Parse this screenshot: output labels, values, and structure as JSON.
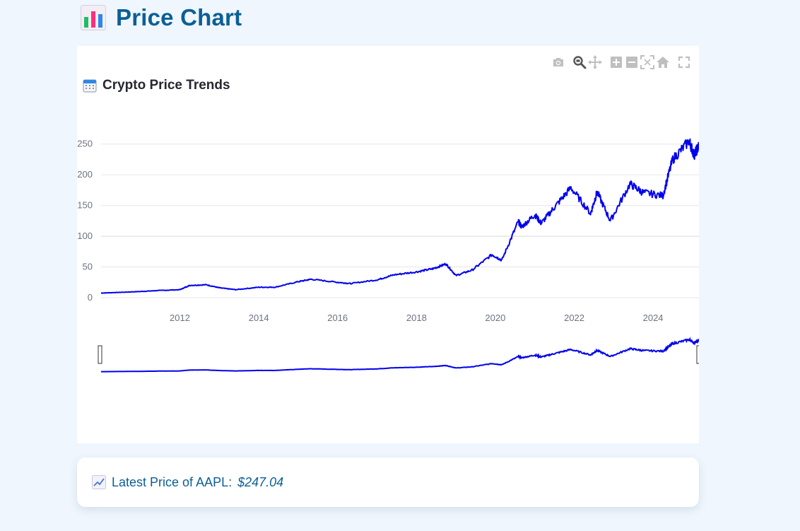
{
  "page": {
    "title": "Price Chart",
    "title_icon": "bar-chart-icon"
  },
  "chart_title": {
    "text": "Crypto Price Trends",
    "icon": "calendar-icon"
  },
  "modebar": [
    {
      "name": "camera-icon",
      "label": "Download plot as a png"
    },
    {
      "name": "zoom-icon",
      "label": "Zoom"
    },
    {
      "name": "pan-icon",
      "label": "Pan"
    },
    {
      "name": "zoom-in-icon",
      "label": "Zoom in"
    },
    {
      "name": "zoom-out-icon",
      "label": "Zoom out"
    },
    {
      "name": "autoscale-icon",
      "label": "Autoscale"
    },
    {
      "name": "reset-axes-icon",
      "label": "Reset axes"
    },
    {
      "name": "fullscreen-icon",
      "label": "Fullscreen"
    }
  ],
  "latest": {
    "icon": "chart-increasing-icon",
    "label": "Latest Price of AAPL:",
    "value": "$247.04"
  },
  "colors": {
    "line": "#0000ee",
    "title": "#0b5f95",
    "background": "#eff6fd",
    "grid": "#e6e6e6"
  },
  "chart_data": {
    "type": "line",
    "title": "Crypto Price Trends",
    "xlabel": "",
    "ylabel": "",
    "x_ticks": [
      "2012",
      "2014",
      "2016",
      "2018",
      "2020",
      "2022",
      "2024"
    ],
    "y_ticks": [
      0,
      50,
      100,
      150,
      200,
      250
    ],
    "xlim": [
      "2010-01-01",
      "2025-03-01"
    ],
    "ylim": [
      0,
      260
    ],
    "grid": true,
    "rangeslider": true,
    "series": [
      {
        "values": [
          [
            "2010-01-01",
            7.5
          ],
          [
            "2010-06-01",
            8.5
          ],
          [
            "2011-01-01",
            10
          ],
          [
            "2011-06-01",
            11.5
          ],
          [
            "2012-01-01",
            13
          ],
          [
            "2012-04-01",
            20
          ],
          [
            "2012-09-01",
            21
          ],
          [
            "2013-01-01",
            16
          ],
          [
            "2013-06-01",
            13
          ],
          [
            "2014-01-01",
            17
          ],
          [
            "2014-06-01",
            17
          ],
          [
            "2015-01-01",
            26
          ],
          [
            "2015-05-01",
            30
          ],
          [
            "2016-01-01",
            25
          ],
          [
            "2016-05-01",
            23
          ],
          [
            "2017-01-01",
            29
          ],
          [
            "2017-06-01",
            37
          ],
          [
            "2018-01-01",
            42
          ],
          [
            "2018-06-01",
            47
          ],
          [
            "2018-10-01",
            55
          ],
          [
            "2019-01-01",
            36
          ],
          [
            "2019-06-01",
            45
          ],
          [
            "2019-12-01",
            70
          ],
          [
            "2020-03-01",
            61
          ],
          [
            "2020-08-01",
            124
          ],
          [
            "2020-09-01",
            115
          ],
          [
            "2021-01-01",
            135
          ],
          [
            "2021-03-01",
            121
          ],
          [
            "2021-07-01",
            147
          ],
          [
            "2021-12-01",
            179
          ],
          [
            "2022-06-01",
            137
          ],
          [
            "2022-08-01",
            172
          ],
          [
            "2022-12-01",
            125
          ],
          [
            "2023-06-01",
            185
          ],
          [
            "2023-10-01",
            171
          ],
          [
            "2024-04-01",
            166
          ],
          [
            "2024-07-01",
            225
          ],
          [
            "2024-12-01",
            255
          ],
          [
            "2025-01-15",
            232
          ],
          [
            "2025-03-01",
            247
          ]
        ]
      }
    ]
  }
}
